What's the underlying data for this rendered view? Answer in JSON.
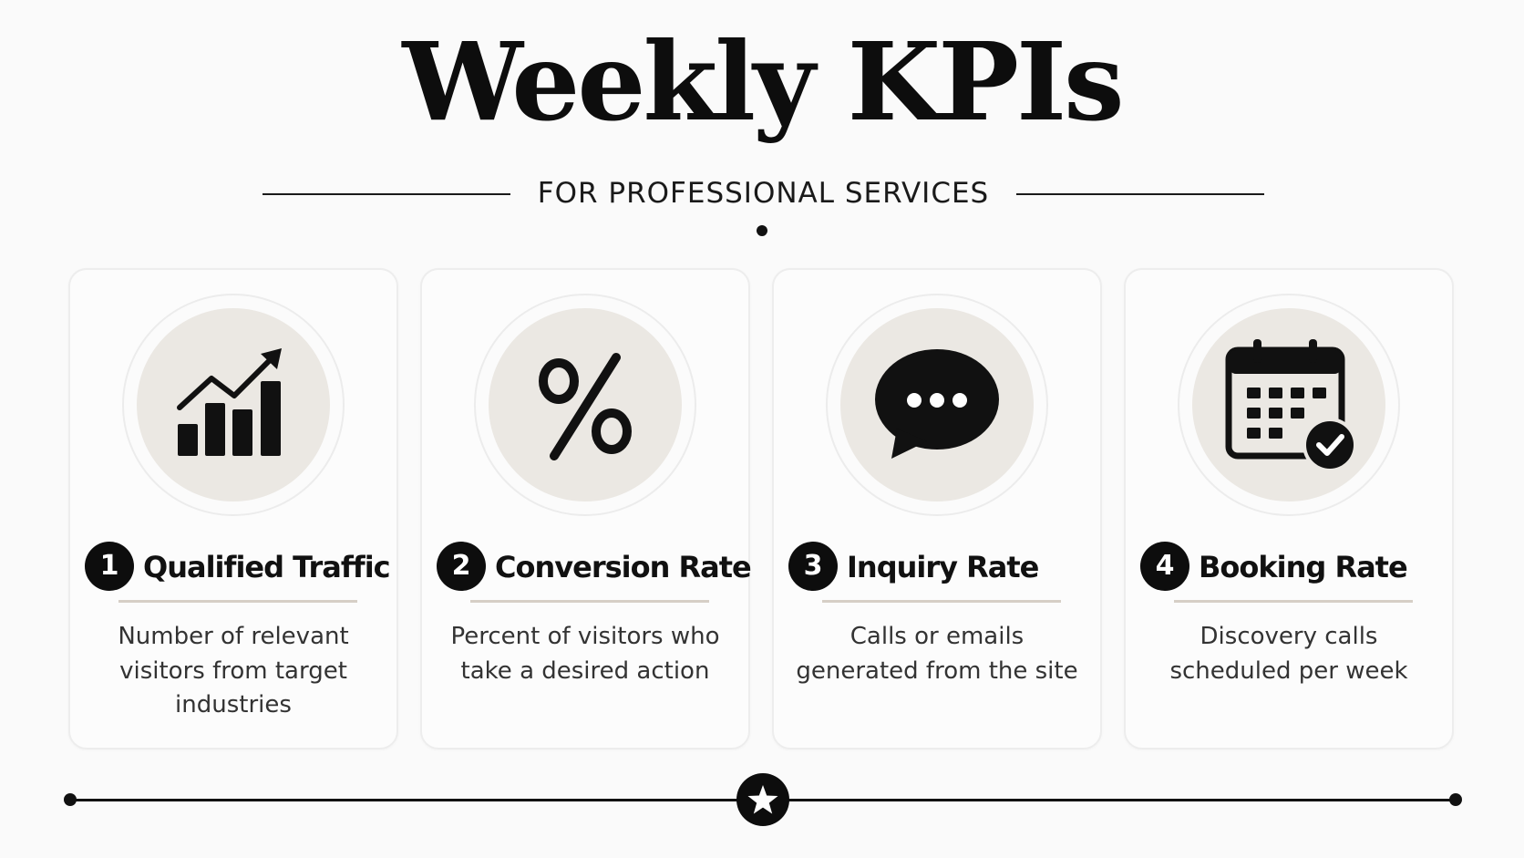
{
  "header": {
    "title": "Weekly KPIs",
    "subtitle": "FOR PROFESSIONAL SERVICES"
  },
  "kpis": [
    {
      "number": "1",
      "title": "Qualified Traffic",
      "description": "Number of relevant visitors from target industries",
      "icon": "bar-chart-trend-icon"
    },
    {
      "number": "2",
      "title": "Conversion Rate",
      "description": "Percent of visitors who take a desired action",
      "icon": "percent-icon"
    },
    {
      "number": "3",
      "title": "Inquiry Rate",
      "description": "Calls or emails generated from the site",
      "icon": "chat-bubble-icon"
    },
    {
      "number": "4",
      "title": "Booking Rate",
      "description": "Discovery calls scheduled per week",
      "icon": "calendar-check-icon"
    }
  ],
  "footer": {
    "icon": "star-icon"
  },
  "colors": {
    "background": "#fafafa",
    "ink": "#0d0d0d",
    "icon_disc": "#ebe8e3",
    "accent_rule": "#d6cfc6"
  }
}
